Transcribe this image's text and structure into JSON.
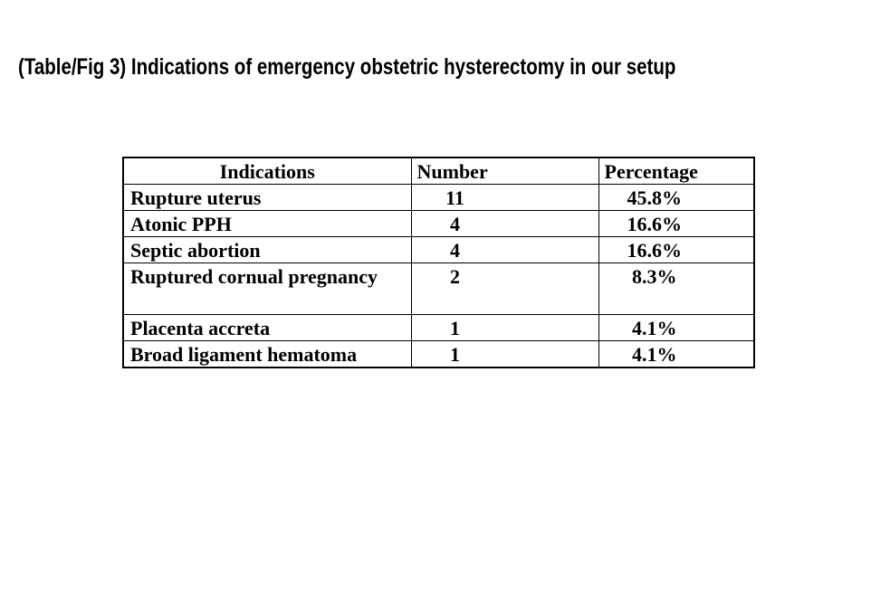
{
  "page": {
    "background": "#ffffff"
  },
  "colors": {
    "text": "#000000",
    "border": "#000000",
    "background": "#ffffff"
  },
  "title": {
    "text": "(Table/Fig 3) Indications of emergency obstetric hysterectomy in our setup"
  },
  "table": {
    "headers": [
      "Indications",
      "Number",
      "Percentage"
    ],
    "rows": [
      {
        "indication": "Rupture uterus",
        "number": "11",
        "percentage": "45.8%"
      },
      {
        "indication": "Atonic PPH",
        "number": "4",
        "percentage": "16.6%"
      },
      {
        "indication": "Septic abortion",
        "number": "4",
        "percentage": "16.6%"
      },
      {
        "indication": "Ruptured cornual pregnancy",
        "number": "2",
        "percentage": "8.3%"
      },
      {
        "indication": "Placenta accreta",
        "number": "1",
        "percentage": "4.1%"
      },
      {
        "indication": "Broad ligament hematoma",
        "number": "1",
        "percentage": "4.1%"
      }
    ]
  }
}
